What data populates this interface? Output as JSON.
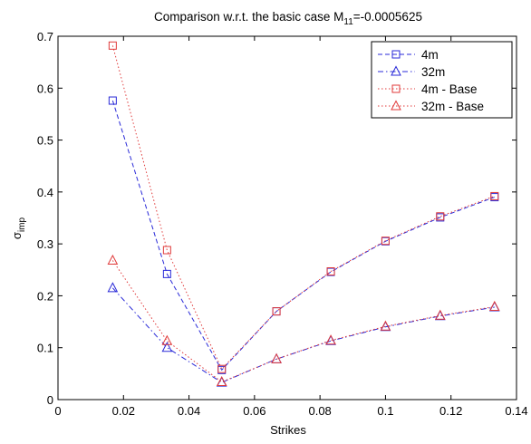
{
  "chart_data": {
    "type": "line",
    "title": {
      "prefix": "Comparison w.r.t. the basic case M",
      "subscript": "11",
      "suffix": "=-0.0005625"
    },
    "xlabel": "Strikes",
    "ylabel": {
      "base": "σ",
      "subscript": "imp"
    },
    "xlim": [
      0,
      0.14
    ],
    "ylim": [
      0,
      0.7
    ],
    "xticks": [
      0,
      0.02,
      0.04,
      0.06,
      0.08,
      0.1,
      0.12,
      0.14
    ],
    "xtick_labels": [
      "0",
      "0.02",
      "0.04",
      "0.06",
      "0.08",
      "0.1",
      "0.12",
      "0.14"
    ],
    "yticks": [
      0,
      0.1,
      0.2,
      0.3,
      0.4,
      0.5,
      0.6,
      0.7
    ],
    "ytick_labels": [
      "0",
      "0.1",
      "0.2",
      "0.3",
      "0.4",
      "0.5",
      "0.6",
      "0.7"
    ],
    "grid": false,
    "legend_position": "top-right",
    "x": [
      0.0167,
      0.0333,
      0.05,
      0.0667,
      0.0833,
      0.1,
      0.1167,
      0.1333
    ],
    "series": [
      {
        "name": "4m",
        "color": "#2a2ad8",
        "dash": "dashed",
        "marker": "square",
        "values": [
          0.576,
          0.242,
          0.057,
          0.17,
          0.246,
          0.305,
          0.351,
          0.39
        ]
      },
      {
        "name": "32m",
        "color": "#2a2ad8",
        "dash": "dashdot",
        "marker": "triangle",
        "values": [
          0.215,
          0.1,
          0.033,
          0.078,
          0.113,
          0.14,
          0.161,
          0.178
        ]
      },
      {
        "name": "4m - Base",
        "color": "#e03a3a",
        "dash": "dotted",
        "marker": "square",
        "values": [
          0.682,
          0.288,
          0.059,
          0.17,
          0.247,
          0.306,
          0.353,
          0.392
        ]
      },
      {
        "name": "32m - Base",
        "color": "#e03a3a",
        "dash": "dotted",
        "marker": "triangle",
        "values": [
          0.268,
          0.113,
          0.034,
          0.078,
          0.114,
          0.141,
          0.162,
          0.179
        ]
      }
    ]
  }
}
